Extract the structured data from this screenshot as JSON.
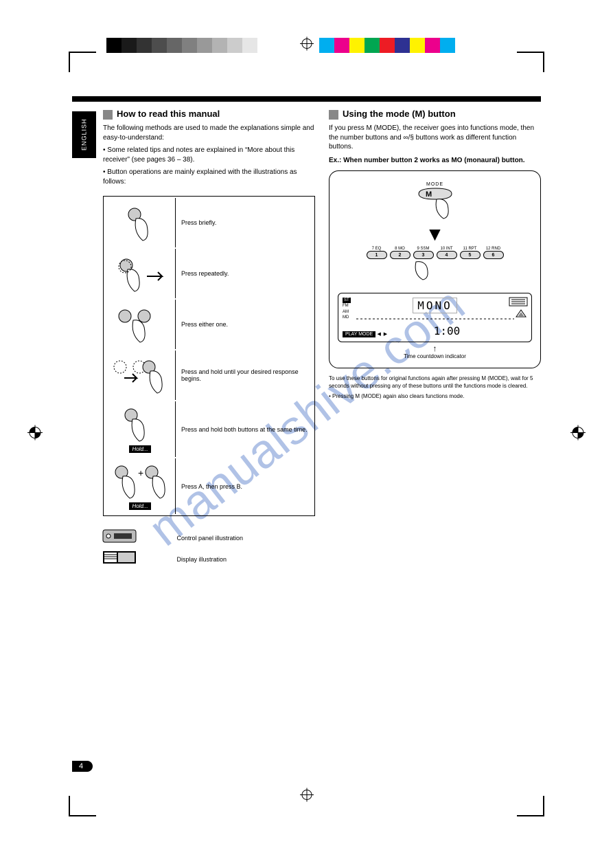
{
  "watermark": "manualshive.com",
  "side_tab": "ENGLISH",
  "colorbar": {
    "grays": [
      "#000000",
      "#1a1a1a",
      "#333333",
      "#4d4d4d",
      "#666666",
      "#808080",
      "#999999",
      "#b3b3b3",
      "#cccccc",
      "#e6e6e6",
      "#ffffff"
    ],
    "colors": [
      "#00aeef",
      "#ec008c",
      "#fff200",
      "#00a651",
      "#ed1c24",
      "#2e3192",
      "#fff200",
      "#ec008c",
      "#00aeef"
    ]
  },
  "left": {
    "title": "How to read this manual",
    "body": "The following methods are used to made the explanations simple and easy-to-understand:",
    "bullets": [
      "Some related tips and notes are explained in “More about this receiver” (see pages 36 – 38).",
      "Button operations are mainly explained with the illustrations as follows:"
    ],
    "table": [
      {
        "desc": "Press briefly.",
        "kind": "press"
      },
      {
        "desc": "Press repeatedly.",
        "kind": "repeat"
      },
      {
        "desc": "Press either one.",
        "kind": "either"
      },
      {
        "desc": "Press and hold until your desired response begins.",
        "kind": "press-repeat-two"
      },
      {
        "desc": "Press and hold both buttons at the same time.",
        "kind": "hold"
      },
      {
        "desc": "Press A, then press B.",
        "kind": "hold-two"
      }
    ],
    "illus1": "Control panel illustration",
    "illus2": "Display illustration"
  },
  "right": {
    "title": "Using the mode (M) button",
    "body1": "If you press M (MODE), the receiver goes into functions mode, then the number buttons and ∞/§ buttons work as different function buttons.",
    "body2": "Ex.: When number button 2 works as MO (monaural) button.",
    "caption1": "Time countdown indicator",
    "caption2": "To use these buttons for original functions again after pressing M (MODE), wait for 5 seconds without pressing any of these buttons until the functions mode is cleared.",
    "caption3": "Pressing M (MODE) again also clears functions mode.",
    "mode_label": "MODE",
    "buttons": [
      {
        "top": "7 EQ",
        "num": "1"
      },
      {
        "top": "8 MO",
        "num": "2"
      },
      {
        "top": "9 SSM",
        "num": "3"
      },
      {
        "top": "10 INT",
        "num": "4"
      },
      {
        "top": "11 RPT",
        "num": "5"
      },
      {
        "top": "12 RND",
        "num": "6"
      }
    ],
    "lcd": {
      "main": "MONO",
      "bands": [
        "FM",
        "AM",
        "MD"
      ],
      "st": "ST",
      "playmode": "PLAY MODE",
      "clock": "1:00"
    }
  },
  "page_number": "4"
}
